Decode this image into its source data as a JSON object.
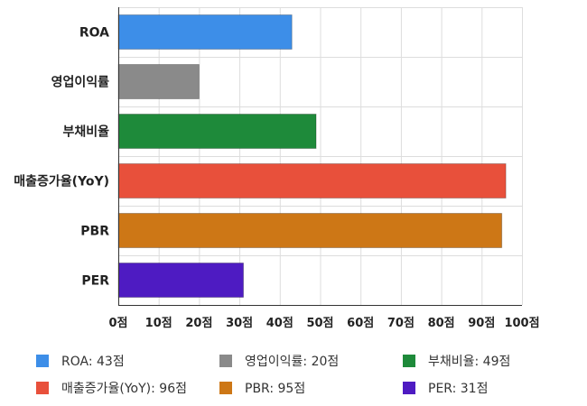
{
  "chart_data": {
    "type": "bar",
    "orientation": "horizontal",
    "title": "",
    "xlabel": "",
    "ylabel": "",
    "categories": [
      "ROA",
      "영업이익률",
      "부채비율",
      "매출증가율(YoY)",
      "PBR",
      "PER"
    ],
    "values": [
      43,
      20,
      49,
      96,
      95,
      31
    ],
    "colors": [
      "#3d8ee8",
      "#8a8a8a",
      "#1e8a3a",
      "#e8503b",
      "#cd7716",
      "#4e1bc2"
    ],
    "unit": "점",
    "xlim": [
      0,
      100
    ],
    "xticks": [
      0,
      10,
      20,
      30,
      40,
      50,
      60,
      70,
      80,
      90,
      100
    ],
    "tick_labels": [
      "0점",
      "10점",
      "20점",
      "30점",
      "40점",
      "50점",
      "60점",
      "70점",
      "80점",
      "90점",
      "100점"
    ],
    "grid": true,
    "legend_position": "bottom",
    "legend_labels": [
      "ROA: 43점",
      "영업이익률: 20점",
      "부채비율: 49점",
      "매출증가율(YoY): 96점",
      "PBR: 95점",
      "PER: 31점"
    ]
  }
}
